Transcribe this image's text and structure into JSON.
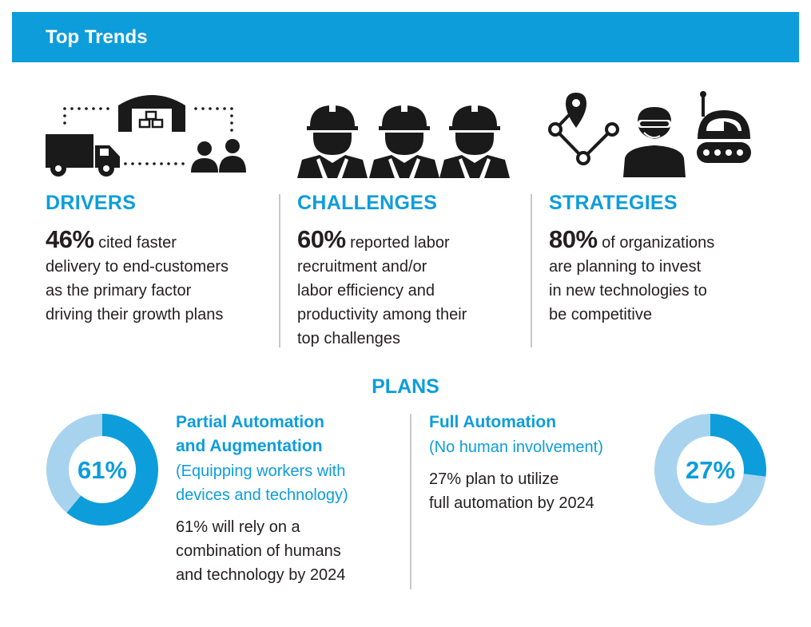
{
  "banner": {
    "title": "Top Trends"
  },
  "colors": {
    "brand": "#0d9ddb",
    "light": "#a7d3ef",
    "text": "#231f20",
    "icon": "#1a1a1a"
  },
  "drivers": {
    "heading": "DRIVERS",
    "stat": "46%",
    "line1": " cited faster",
    "line2": "delivery to end-customers",
    "line3": "as the primary factor",
    "line4": "driving their growth plans",
    "icon": "warehouse-truck-people-icon"
  },
  "challenges": {
    "heading": "CHALLENGES",
    "stat": "60%",
    "line1": " reported labor",
    "line2": "recruitment and/or",
    "line3": "labor efficiency and",
    "line4": "productivity among their",
    "line5": "top challenges",
    "icon": "construction-workers-icon"
  },
  "strategies": {
    "heading": "STRATEGIES",
    "stat": "80%",
    "line1": " of organizations",
    "line2": "are planning to invest",
    "line3": "in new technologies to",
    "line4": "be competitive",
    "icon": "route-headset-robot-icon"
  },
  "plans": {
    "title": "PLANS",
    "partial": {
      "head1": "Partial Automation",
      "head2": "and Augmentation",
      "paren1": "(Equipping workers with",
      "paren2": "devices and technology)",
      "text1": "61% will rely on a",
      "text2": "combination of humans",
      "text3": "and technology by 2024"
    },
    "full": {
      "head1": "Full Automation",
      "paren1": "(No human involvement)",
      "text1": "27% plan to utilize",
      "text2": "full automation by 2024"
    }
  },
  "chart_data": [
    {
      "type": "pie",
      "title": "",
      "categories": [
        "Partial Automation and Augmentation",
        ""
      ],
      "values": [
        61,
        39
      ],
      "label": "61%"
    },
    {
      "type": "pie",
      "title": "",
      "categories": [
        "Full Automation",
        ""
      ],
      "values": [
        27,
        73
      ],
      "label": "27%"
    }
  ]
}
